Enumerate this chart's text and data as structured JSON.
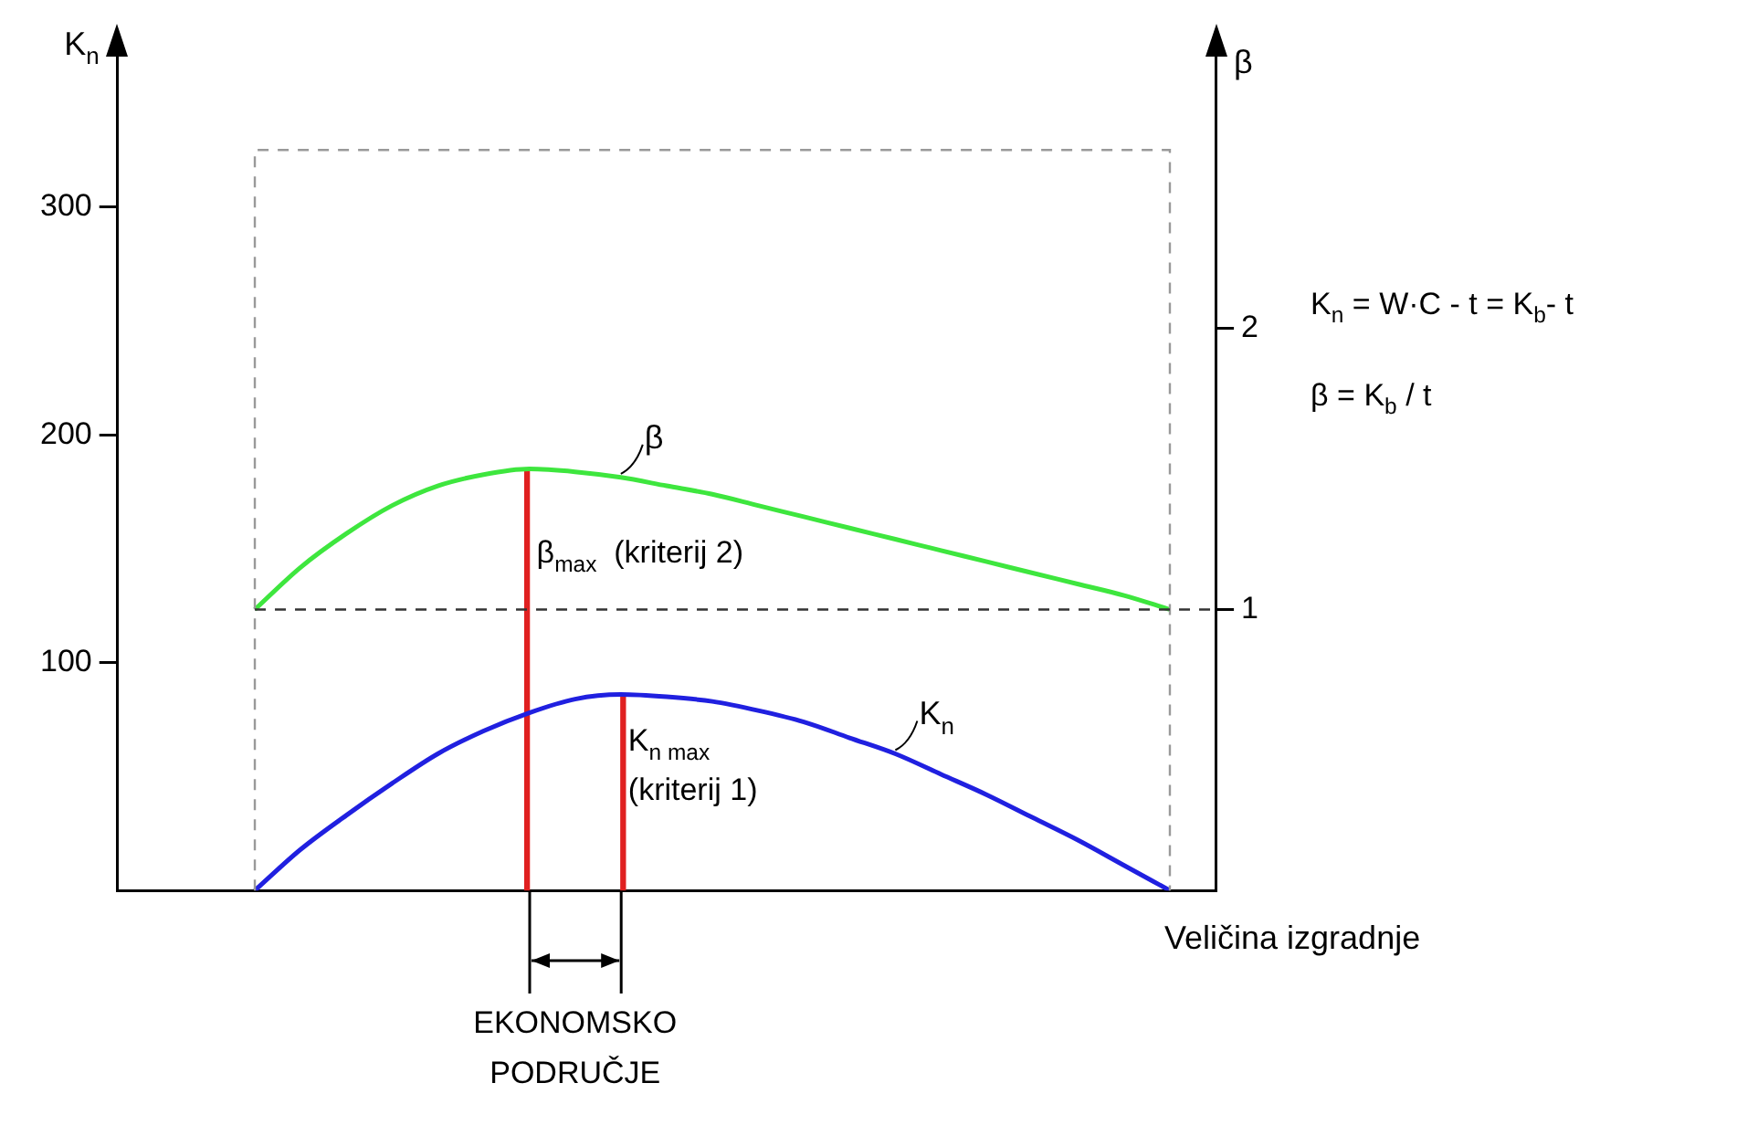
{
  "chart_data": {
    "type": "line",
    "categories": [
      null,
      null,
      null,
      null,
      null,
      null,
      null,
      null,
      null,
      null,
      null,
      null,
      null,
      null,
      null,
      null,
      null,
      null,
      null,
      null,
      null,
      null,
      null,
      null,
      null
    ],
    "series": [
      {
        "name": "β",
        "color": "#3ee63e",
        "axis": "y2",
        "values": [
          null,
          null,
          null,
          1.0,
          1.15,
          1.27,
          1.37,
          1.44,
          1.48,
          1.5,
          1.49,
          1.47,
          1.44,
          1.41,
          1.37,
          1.33,
          1.29,
          1.25,
          1.21,
          1.17,
          1.13,
          1.09,
          1.05,
          1.0,
          null
        ]
      },
      {
        "name": "K$_{n}$",
        "color": "#2020e0",
        "values": [
          null,
          null,
          null,
          0,
          18,
          33,
          47,
          60,
          70,
          78,
          84,
          86,
          85,
          83,
          79,
          74,
          67,
          60,
          51,
          42,
          32,
          22,
          11,
          0,
          null
        ]
      },
      {
        "type": "bar",
        "color": "#e02020",
        "axis": "y2",
        "values": [
          null,
          null,
          null,
          null,
          null,
          null,
          null,
          null,
          null,
          1.5,
          null,
          null,
          null,
          null,
          null,
          null,
          null,
          null,
          null,
          null,
          null,
          null,
          null,
          null,
          null
        ]
      },
      {
        "type": "bar",
        "color": "#e02020",
        "values": [
          null,
          null,
          null,
          null,
          null,
          null,
          null,
          null,
          null,
          null,
          null,
          86,
          null,
          null,
          null,
          null,
          null,
          null,
          null,
          null,
          null,
          null,
          null,
          null,
          null
        ]
      }
    ],
    "ylabel": "K$_{n}$",
    "y2label": "β",
    "xlabel": "Veličina izgradnje",
    "ylim": [
      0,
      370
    ],
    "yticks": [
      100,
      200,
      300
    ],
    "y2lim": [
      0,
      3
    ],
    "y2ticks": [
      1,
      2
    ],
    "ref_lines": [
      {
        "axis": "y",
        "value": 325,
        "line_style": "dashed",
        "color": "#999999"
      },
      {
        "axis": "y2",
        "value": 1,
        "line_style": "dashed",
        "color": "#333333"
      }
    ],
    "annotations": [
      "K$_{n}$ = W·C - t = K$_{b}$- t",
      "β = K$_{b}$ / t",
      "β$_{max}$  (kriterij 2)",
      "K$_{n max}$\n(kriterij 1)",
      "EKONOMSKO\nPODRUČJE"
    ],
    "marker": "none",
    "line_style": "solid",
    "legend": false,
    "grid": false
  }
}
